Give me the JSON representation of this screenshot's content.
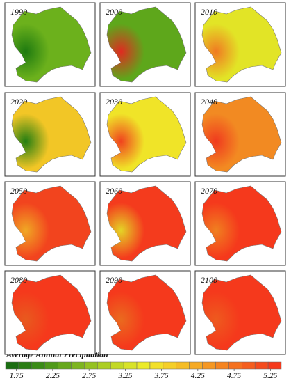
{
  "panels": [
    {
      "year": "1990",
      "color": "#6cb11c",
      "accent": "#1e7a10"
    },
    {
      "year": "2000",
      "color": "#5ea71b",
      "accent": "#e02a20"
    },
    {
      "year": "2010",
      "color": "#e2e426",
      "accent": "#f07a22"
    },
    {
      "year": "2020",
      "color": "#f2c626",
      "accent": "#237e12"
    },
    {
      "year": "2030",
      "color": "#f0e428",
      "accent": "#f0421e"
    },
    {
      "year": "2040",
      "color": "#f28a22",
      "accent": "#f03a1e"
    },
    {
      "year": "2050",
      "color": "#f2441e",
      "accent": "#f0a824"
    },
    {
      "year": "2060",
      "color": "#f43b1d",
      "accent": "#e4d426"
    },
    {
      "year": "2070",
      "color": "#f5391c",
      "accent": "#f08020"
    },
    {
      "year": "2080",
      "color": "#f5391c",
      "accent": "#e85a1e"
    },
    {
      "year": "2090",
      "color": "#f5391c",
      "accent": "#ea6a1e"
    },
    {
      "year": "2100",
      "color": "#f5391c",
      "accent": "#ee5a1e"
    }
  ],
  "legend": {
    "title": "Average Annual Precipitation",
    "xlim": [
      1.6,
      5.4
    ],
    "ticks": [
      1.75,
      2.25,
      2.75,
      3.25,
      3.75,
      4.25,
      4.75,
      5.25
    ],
    "colors": [
      "#1b6e12",
      "#2a7d14",
      "#3a8c17",
      "#4f9a1a",
      "#66a81d",
      "#7db520",
      "#95c222",
      "#acce24",
      "#c3d926",
      "#d8e328",
      "#ebeb2a",
      "#f2e02a",
      "#f5cf28",
      "#f5bd26",
      "#f5aa24",
      "#f59722",
      "#f58420",
      "#f5711f",
      "#f55e1e",
      "#f54b1d",
      "#f5391c"
    ]
  }
}
